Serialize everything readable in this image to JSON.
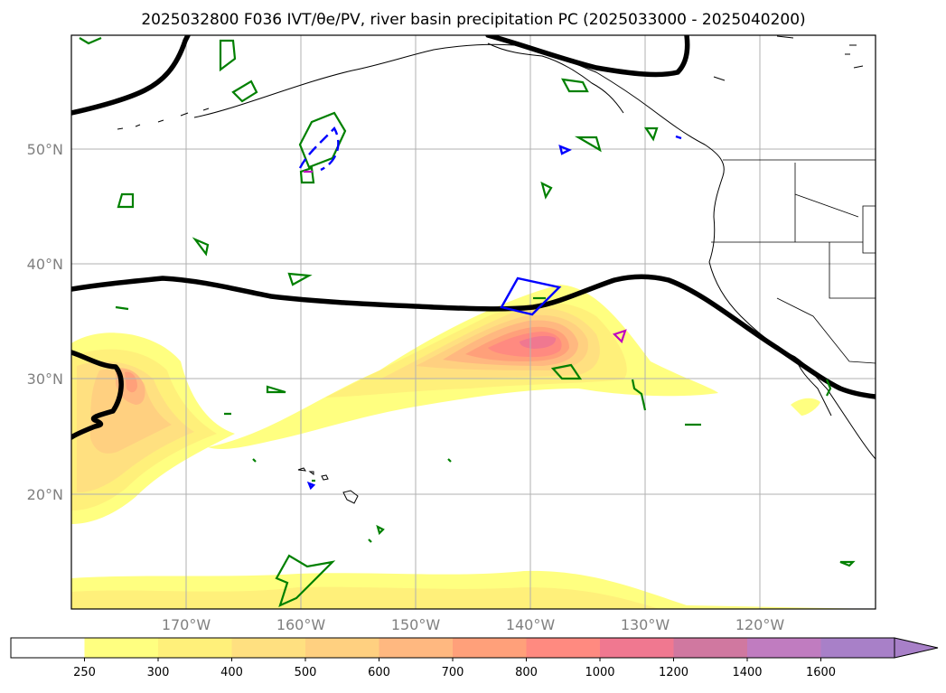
{
  "title": "2025032800 F036 IVT/θe/PV, river basin precipitation PC (2025033000 - 2025040200)",
  "map": {
    "lat_labels": [
      "50°N",
      "40°N",
      "30°N",
      "20°N"
    ],
    "lon_labels": [
      "170°W",
      "160°W",
      "150°W",
      "140°W",
      "130°W",
      "120°W"
    ],
    "lat_range": [
      10,
      60
    ],
    "lon_range": [
      -180,
      -110
    ]
  },
  "colorbar": {
    "levels": [
      "250",
      "300",
      "400",
      "500",
      "600",
      "700",
      "800",
      "1000",
      "1200",
      "1400",
      "1600"
    ],
    "colors": [
      "#ffffff",
      "#ffff80",
      "#fff07a",
      "#ffe080",
      "#ffd080",
      "#ffb880",
      "#ffa07a",
      "#ff8a80",
      "#f07890",
      "#d078a0",
      "#c07cc0",
      "#a880c8"
    ],
    "extend": "max"
  }
}
